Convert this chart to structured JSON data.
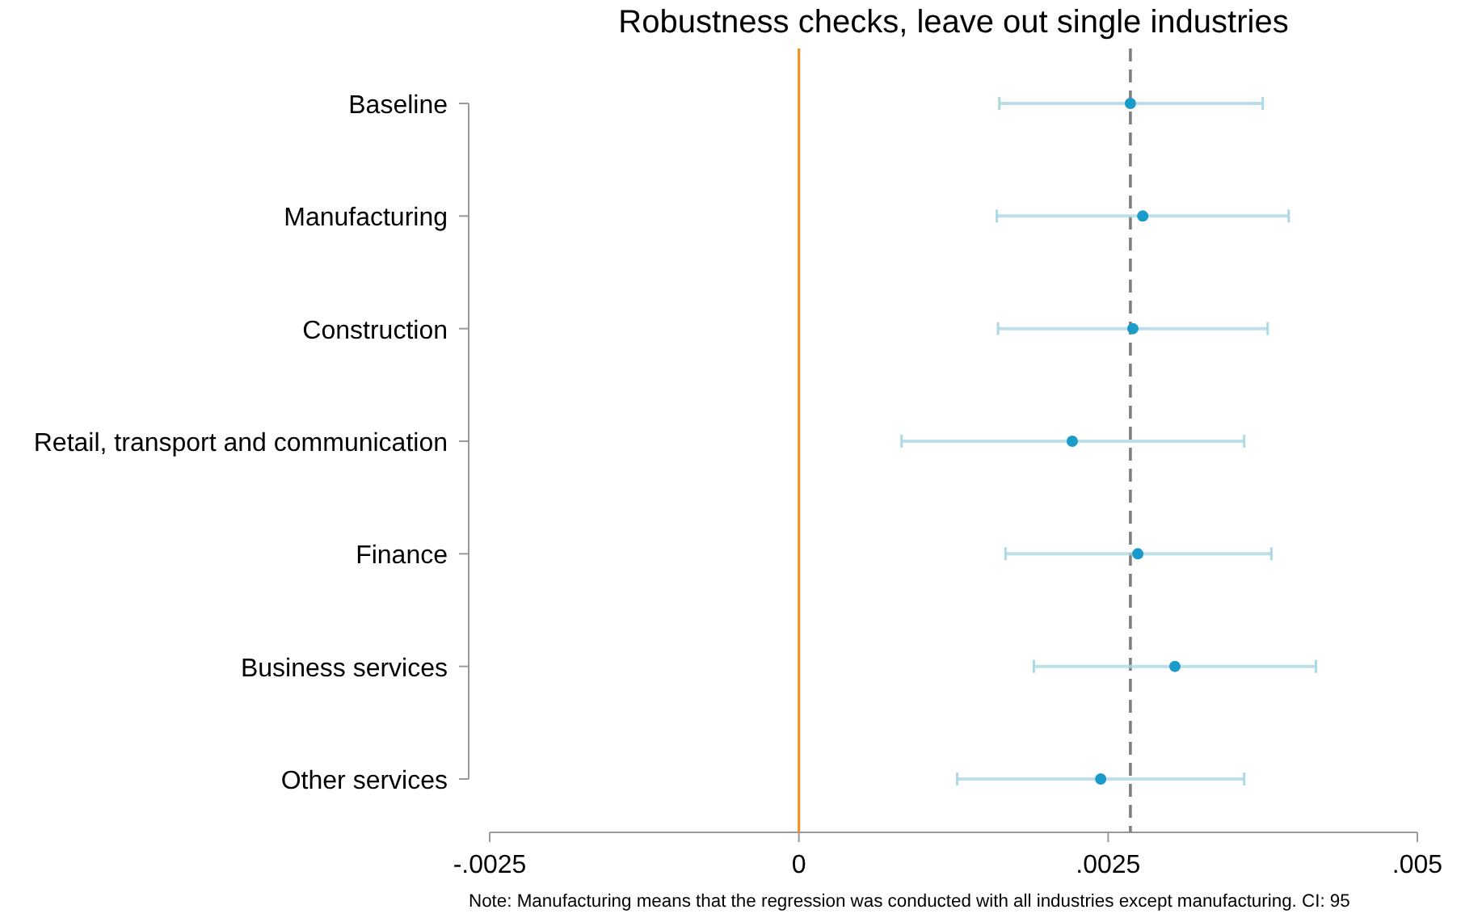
{
  "chart_data": {
    "type": "scatter",
    "title": "Robustness checks, leave out single industries",
    "orientation": "horizontal",
    "categories": [
      "Baseline",
      "Manufacturing",
      "Construction",
      "Retail, transport and communication",
      "Finance",
      "Business services",
      "Other services"
    ],
    "series": [
      {
        "color": "#1a9bc9",
        "values": [
          0.00268,
          0.00278,
          0.0027,
          0.00221,
          0.00274,
          0.00304,
          0.00244
        ],
        "errors": [
          [
            0.00162,
            0.00375
          ],
          [
            0.0016,
            0.00396
          ],
          [
            0.00161,
            0.00379
          ],
          [
            0.00083,
            0.0036
          ],
          [
            0.00167,
            0.00382
          ],
          [
            0.0019,
            0.00418
          ],
          [
            0.00128,
            0.0036
          ]
        ]
      }
    ],
    "marker": "circle",
    "xlim": [
      -0.0025,
      0.005
    ],
    "xticks": [
      {
        "value": -0.0025,
        "label": "-.0025"
      },
      0,
      {
        "value": 0.0025,
        "label": ".0025"
      },
      {
        "value": 0.005,
        "label": ".005"
      }
    ],
    "ref_lines": [
      {
        "axis": "x",
        "value": 0,
        "color": "#f28e1c",
        "line_style": "solid"
      },
      {
        "axis": "x",
        "value": 0.00268,
        "color": "#7f7f7f",
        "line_style": "dashed"
      }
    ],
    "annotations": [
      "Note: Manufacturing means that the regression was conducted with all industries except manufacturing. CI: 95"
    ]
  }
}
